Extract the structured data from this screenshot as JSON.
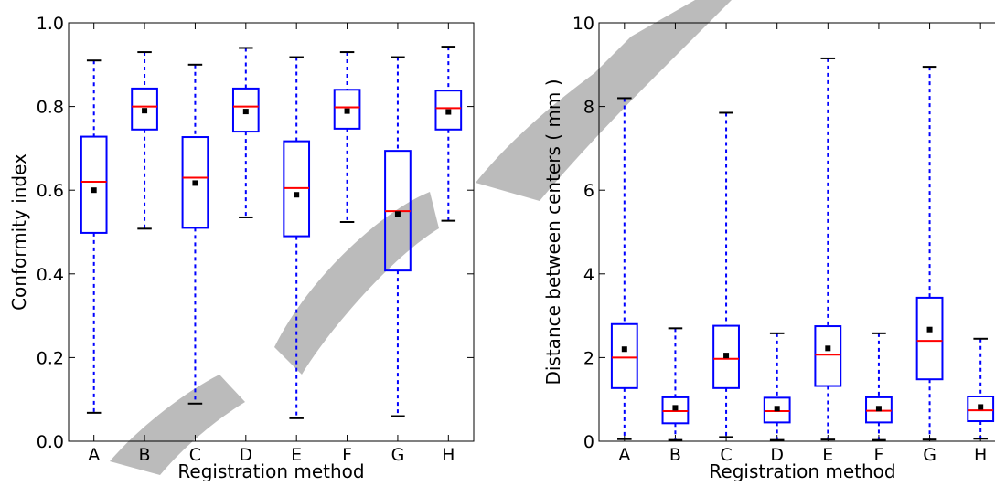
{
  "chart_data": [
    {
      "type": "boxplot",
      "xlabel": "Registration method",
      "ylabel": "Conformity index",
      "categories": [
        "A",
        "B",
        "C",
        "D",
        "E",
        "F",
        "G",
        "H"
      ],
      "ylim": [
        0.0,
        1.0
      ],
      "yticks": [
        0.0,
        0.2,
        0.4,
        0.6,
        0.8,
        1.0
      ],
      "ytick_labels": [
        "0.0",
        "0.2",
        "0.4",
        "0.6",
        "0.8",
        "1.0"
      ],
      "boxes": [
        {
          "category": "A",
          "whisker_low": 0.068,
          "q1": 0.498,
          "median": 0.62,
          "q3": 0.728,
          "whisker_high": 0.91,
          "mean": 0.6
        },
        {
          "category": "B",
          "whisker_low": 0.508,
          "q1": 0.745,
          "median": 0.8,
          "q3": 0.843,
          "whisker_high": 0.93,
          "mean": 0.79
        },
        {
          "category": "C",
          "whisker_low": 0.09,
          "q1": 0.51,
          "median": 0.63,
          "q3": 0.727,
          "whisker_high": 0.9,
          "mean": 0.617
        },
        {
          "category": "D",
          "whisker_low": 0.535,
          "q1": 0.74,
          "median": 0.8,
          "q3": 0.843,
          "whisker_high": 0.94,
          "mean": 0.788
        },
        {
          "category": "E",
          "whisker_low": 0.055,
          "q1": 0.49,
          "median": 0.605,
          "q3": 0.717,
          "whisker_high": 0.918,
          "mean": 0.589
        },
        {
          "category": "F",
          "whisker_low": 0.524,
          "q1": 0.747,
          "median": 0.798,
          "q3": 0.84,
          "whisker_high": 0.93,
          "mean": 0.789
        },
        {
          "category": "G",
          "whisker_low": 0.06,
          "q1": 0.408,
          "median": 0.55,
          "q3": 0.694,
          "whisker_high": 0.918,
          "mean": 0.543
        },
        {
          "category": "H",
          "whisker_low": 0.527,
          "q1": 0.745,
          "median": 0.796,
          "q3": 0.838,
          "whisker_high": 0.943,
          "mean": 0.787
        }
      ],
      "colors": {
        "box": "#0000ff",
        "median": "#ff0000",
        "mean": "#000000",
        "cap": "#000000"
      },
      "grid": false,
      "legend": "none"
    },
    {
      "type": "boxplot",
      "xlabel": "Registration method",
      "ylabel": "Distance between centers ( mm )",
      "categories": [
        "A",
        "B",
        "C",
        "D",
        "E",
        "F",
        "G",
        "H"
      ],
      "ylim": [
        0,
        10
      ],
      "yticks": [
        0,
        2,
        4,
        6,
        8,
        10
      ],
      "ytick_labels": [
        "0",
        "2",
        "4",
        "6",
        "8",
        "10"
      ],
      "boxes": [
        {
          "category": "A",
          "whisker_low": 0.05,
          "q1": 1.27,
          "median": 2.0,
          "q3": 2.8,
          "whisker_high": 8.2,
          "mean": 2.2
        },
        {
          "category": "B",
          "whisker_low": 0.03,
          "q1": 0.43,
          "median": 0.72,
          "q3": 1.05,
          "whisker_high": 2.7,
          "mean": 0.8
        },
        {
          "category": "C",
          "whisker_low": 0.1,
          "q1": 1.27,
          "median": 1.97,
          "q3": 2.76,
          "whisker_high": 7.85,
          "mean": 2.05
        },
        {
          "category": "D",
          "whisker_low": 0.03,
          "q1": 0.45,
          "median": 0.72,
          "q3": 1.04,
          "whisker_high": 2.58,
          "mean": 0.78
        },
        {
          "category": "E",
          "whisker_low": 0.04,
          "q1": 1.32,
          "median": 2.07,
          "q3": 2.75,
          "whisker_high": 9.15,
          "mean": 2.22
        },
        {
          "category": "F",
          "whisker_low": 0.03,
          "q1": 0.45,
          "median": 0.73,
          "q3": 1.05,
          "whisker_high": 2.58,
          "mean": 0.78
        },
        {
          "category": "G",
          "whisker_low": 0.04,
          "q1": 1.48,
          "median": 2.4,
          "q3": 3.43,
          "whisker_high": 8.95,
          "mean": 2.67
        },
        {
          "category": "H",
          "whisker_low": 0.06,
          "q1": 0.48,
          "median": 0.74,
          "q3": 1.07,
          "whisker_high": 2.45,
          "mean": 0.82
        }
      ],
      "colors": {
        "box": "#0000ff",
        "median": "#ff0000",
        "mean": "#000000",
        "cap": "#000000"
      },
      "grid": false,
      "legend": "none"
    }
  ],
  "watermark": {
    "color": "#b4b4b4"
  }
}
